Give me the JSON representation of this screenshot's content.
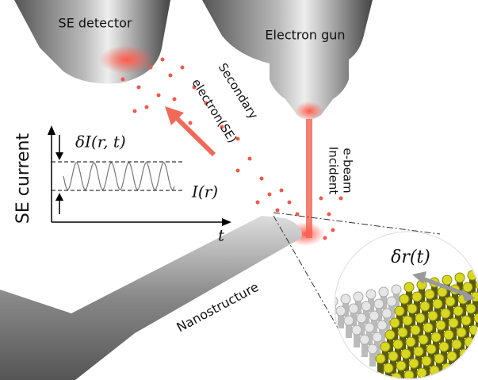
{
  "labels": {
    "se_detector": "SE detector",
    "electron_gun": "Electron gun",
    "secondary": [
      "Secondary",
      "electron(SE)"
    ],
    "incident": [
      "Incident",
      "e-beam"
    ],
    "nanostructure": "Nanostructure"
  },
  "plot": {
    "y_label": "SE current",
    "x_label": "t",
    "delta_i": "δI(r, t)",
    "i": "I(r)"
  },
  "inset": {
    "label": "δr(t)"
  }
}
